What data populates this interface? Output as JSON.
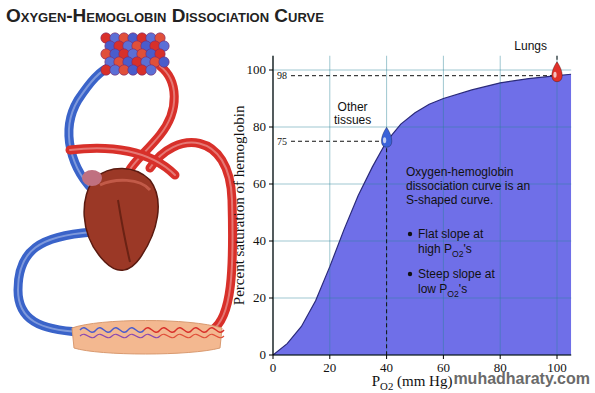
{
  "chart_data": {
    "type": "area",
    "title": "Oxygen-Hemoglobin Dissociation Curve",
    "x_label": "PO2 (mm Hg)",
    "y_label": "Percent saturation of hemoglobin",
    "x": [
      0,
      5,
      10,
      15,
      20,
      25,
      30,
      35,
      40,
      45,
      50,
      55,
      60,
      70,
      80,
      90,
      100,
      105
    ],
    "values": [
      0,
      4,
      10,
      19,
      31,
      44,
      56,
      66,
      75,
      81,
      85,
      88,
      90,
      93,
      95.5,
      97,
      98,
      98.5
    ],
    "color": "#6f6fe8",
    "xlim": [
      0,
      105
    ],
    "ylim": [
      0,
      105
    ],
    "xticks": [
      0,
      20,
      40,
      60,
      80,
      100
    ],
    "yticks": [
      0,
      20,
      40,
      60,
      80,
      100
    ],
    "grid": true,
    "points": [
      {
        "label": [
          "Lungs"
        ],
        "x": 100,
        "y": 98,
        "color": "#e0302a"
      },
      {
        "label": [
          "Other",
          "tissues"
        ],
        "x": 40,
        "y": 75,
        "color": "#3a62d8"
      }
    ],
    "note": [
      "Oxygen-hemoglobin",
      "dissociation curve is an",
      "S-shaped curve."
    ],
    "bullets": [
      [
        "Flat slope at",
        "high PO2's"
      ],
      [
        "Steep slope at",
        "low PO2's"
      ]
    ],
    "source": "muhadharaty.com"
  }
}
